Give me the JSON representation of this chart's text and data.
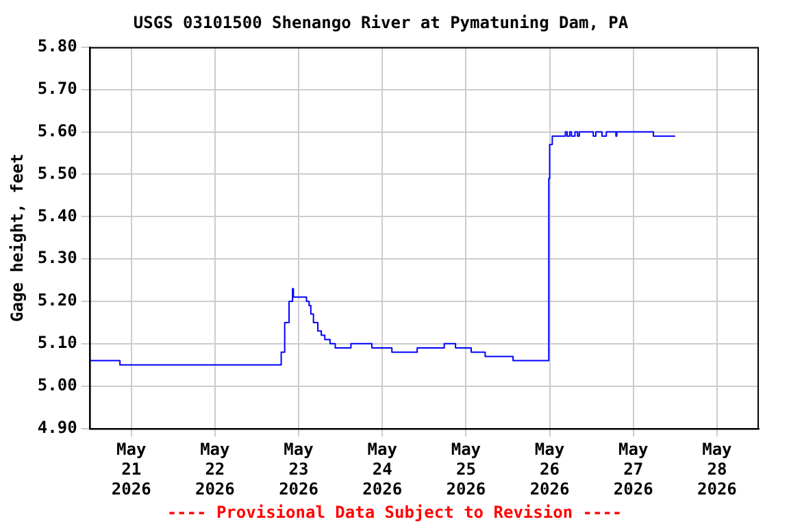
{
  "chart_data": {
    "type": "step",
    "title": "USGS 03101500 Shenango River at Pymatuning Dam, PA",
    "ylabel": "Gage height, feet",
    "annotations": [
      "---- Provisional Data Subject to Revision ----"
    ],
    "x": [
      "2026-05-20T12:00",
      "2026-05-20T20:45",
      "2026-05-22T18:15",
      "2026-05-22T19:00",
      "2026-05-22T20:00",
      "2026-05-22T21:15",
      "2026-05-22T22:15",
      "2026-05-22T22:30",
      "2026-05-23T02:15",
      "2026-05-23T03:00",
      "2026-05-23T03:30",
      "2026-05-23T04:15",
      "2026-05-23T05:30",
      "2026-05-23T06:30",
      "2026-05-23T07:30",
      "2026-05-23T09:00",
      "2026-05-23T10:30",
      "2026-05-23T15:00",
      "2026-05-23T21:00",
      "2026-05-24T02:45",
      "2026-05-24T10:00",
      "2026-05-24T17:45",
      "2026-05-24T21:00",
      "2026-05-25T01:30",
      "2026-05-25T05:30",
      "2026-05-25T13:30",
      "2026-05-25T23:30",
      "2026-05-25T23:45",
      "2026-05-26T00:00",
      "2026-05-26T00:45",
      "2026-05-26T04:30",
      "2026-05-26T05:00",
      "2026-05-26T05:45",
      "2026-05-26T06:15",
      "2026-05-26T07:15",
      "2026-05-26T08:00",
      "2026-05-26T08:30",
      "2026-05-26T12:30",
      "2026-05-26T13:15",
      "2026-05-26T15:00",
      "2026-05-26T16:15",
      "2026-05-26T19:00",
      "2026-05-26T19:15",
      "2026-05-27T05:45",
      "2026-05-27T12:00"
    ],
    "series": [
      {
        "color": "#0000ff",
        "values": [
          5.06,
          5.05,
          5.05,
          5.08,
          5.15,
          5.2,
          5.23,
          5.21,
          5.2,
          5.19,
          5.17,
          5.15,
          5.13,
          5.12,
          5.11,
          5.1,
          5.09,
          5.1,
          5.09,
          5.08,
          5.09,
          5.1,
          5.09,
          5.08,
          5.07,
          5.06,
          5.06,
          5.49,
          5.57,
          5.59,
          5.6,
          5.59,
          5.6,
          5.59,
          5.6,
          5.59,
          5.6,
          5.59,
          5.6,
          5.59,
          5.6,
          5.59,
          5.6,
          5.59,
          5.59
        ]
      }
    ],
    "xlim": [
      "2026-05-20T12:00",
      "2026-05-28T12:00"
    ],
    "xticks": [
      {
        "value": "2026-05-21",
        "label": "May 21 2026"
      },
      {
        "value": "2026-05-22",
        "label": "May 22 2026"
      },
      {
        "value": "2026-05-23",
        "label": "May 23 2026"
      },
      {
        "value": "2026-05-24",
        "label": "May 24 2026"
      },
      {
        "value": "2026-05-25",
        "label": "May 25 2026"
      },
      {
        "value": "2026-05-26",
        "label": "May 26 2026"
      },
      {
        "value": "2026-05-27",
        "label": "May 27 2026"
      },
      {
        "value": "2026-05-28",
        "label": "May 28 2026"
      }
    ],
    "ylim": [
      4.9,
      5.8
    ],
    "yticks": [
      {
        "value": 4.9,
        "label": "4.90"
      },
      {
        "value": 5.0,
        "label": "5.00"
      },
      {
        "value": 5.1,
        "label": "5.10"
      },
      {
        "value": 5.2,
        "label": "5.20"
      },
      {
        "value": 5.3,
        "label": "5.30"
      },
      {
        "value": 5.4,
        "label": "5.40"
      },
      {
        "value": 5.5,
        "label": "5.50"
      },
      {
        "value": 5.6,
        "label": "5.60"
      },
      {
        "value": 5.7,
        "label": "5.70"
      },
      {
        "value": 5.8,
        "label": "5.80"
      }
    ],
    "grid": true,
    "legend": false,
    "marker": "none",
    "line_style": "solid"
  }
}
